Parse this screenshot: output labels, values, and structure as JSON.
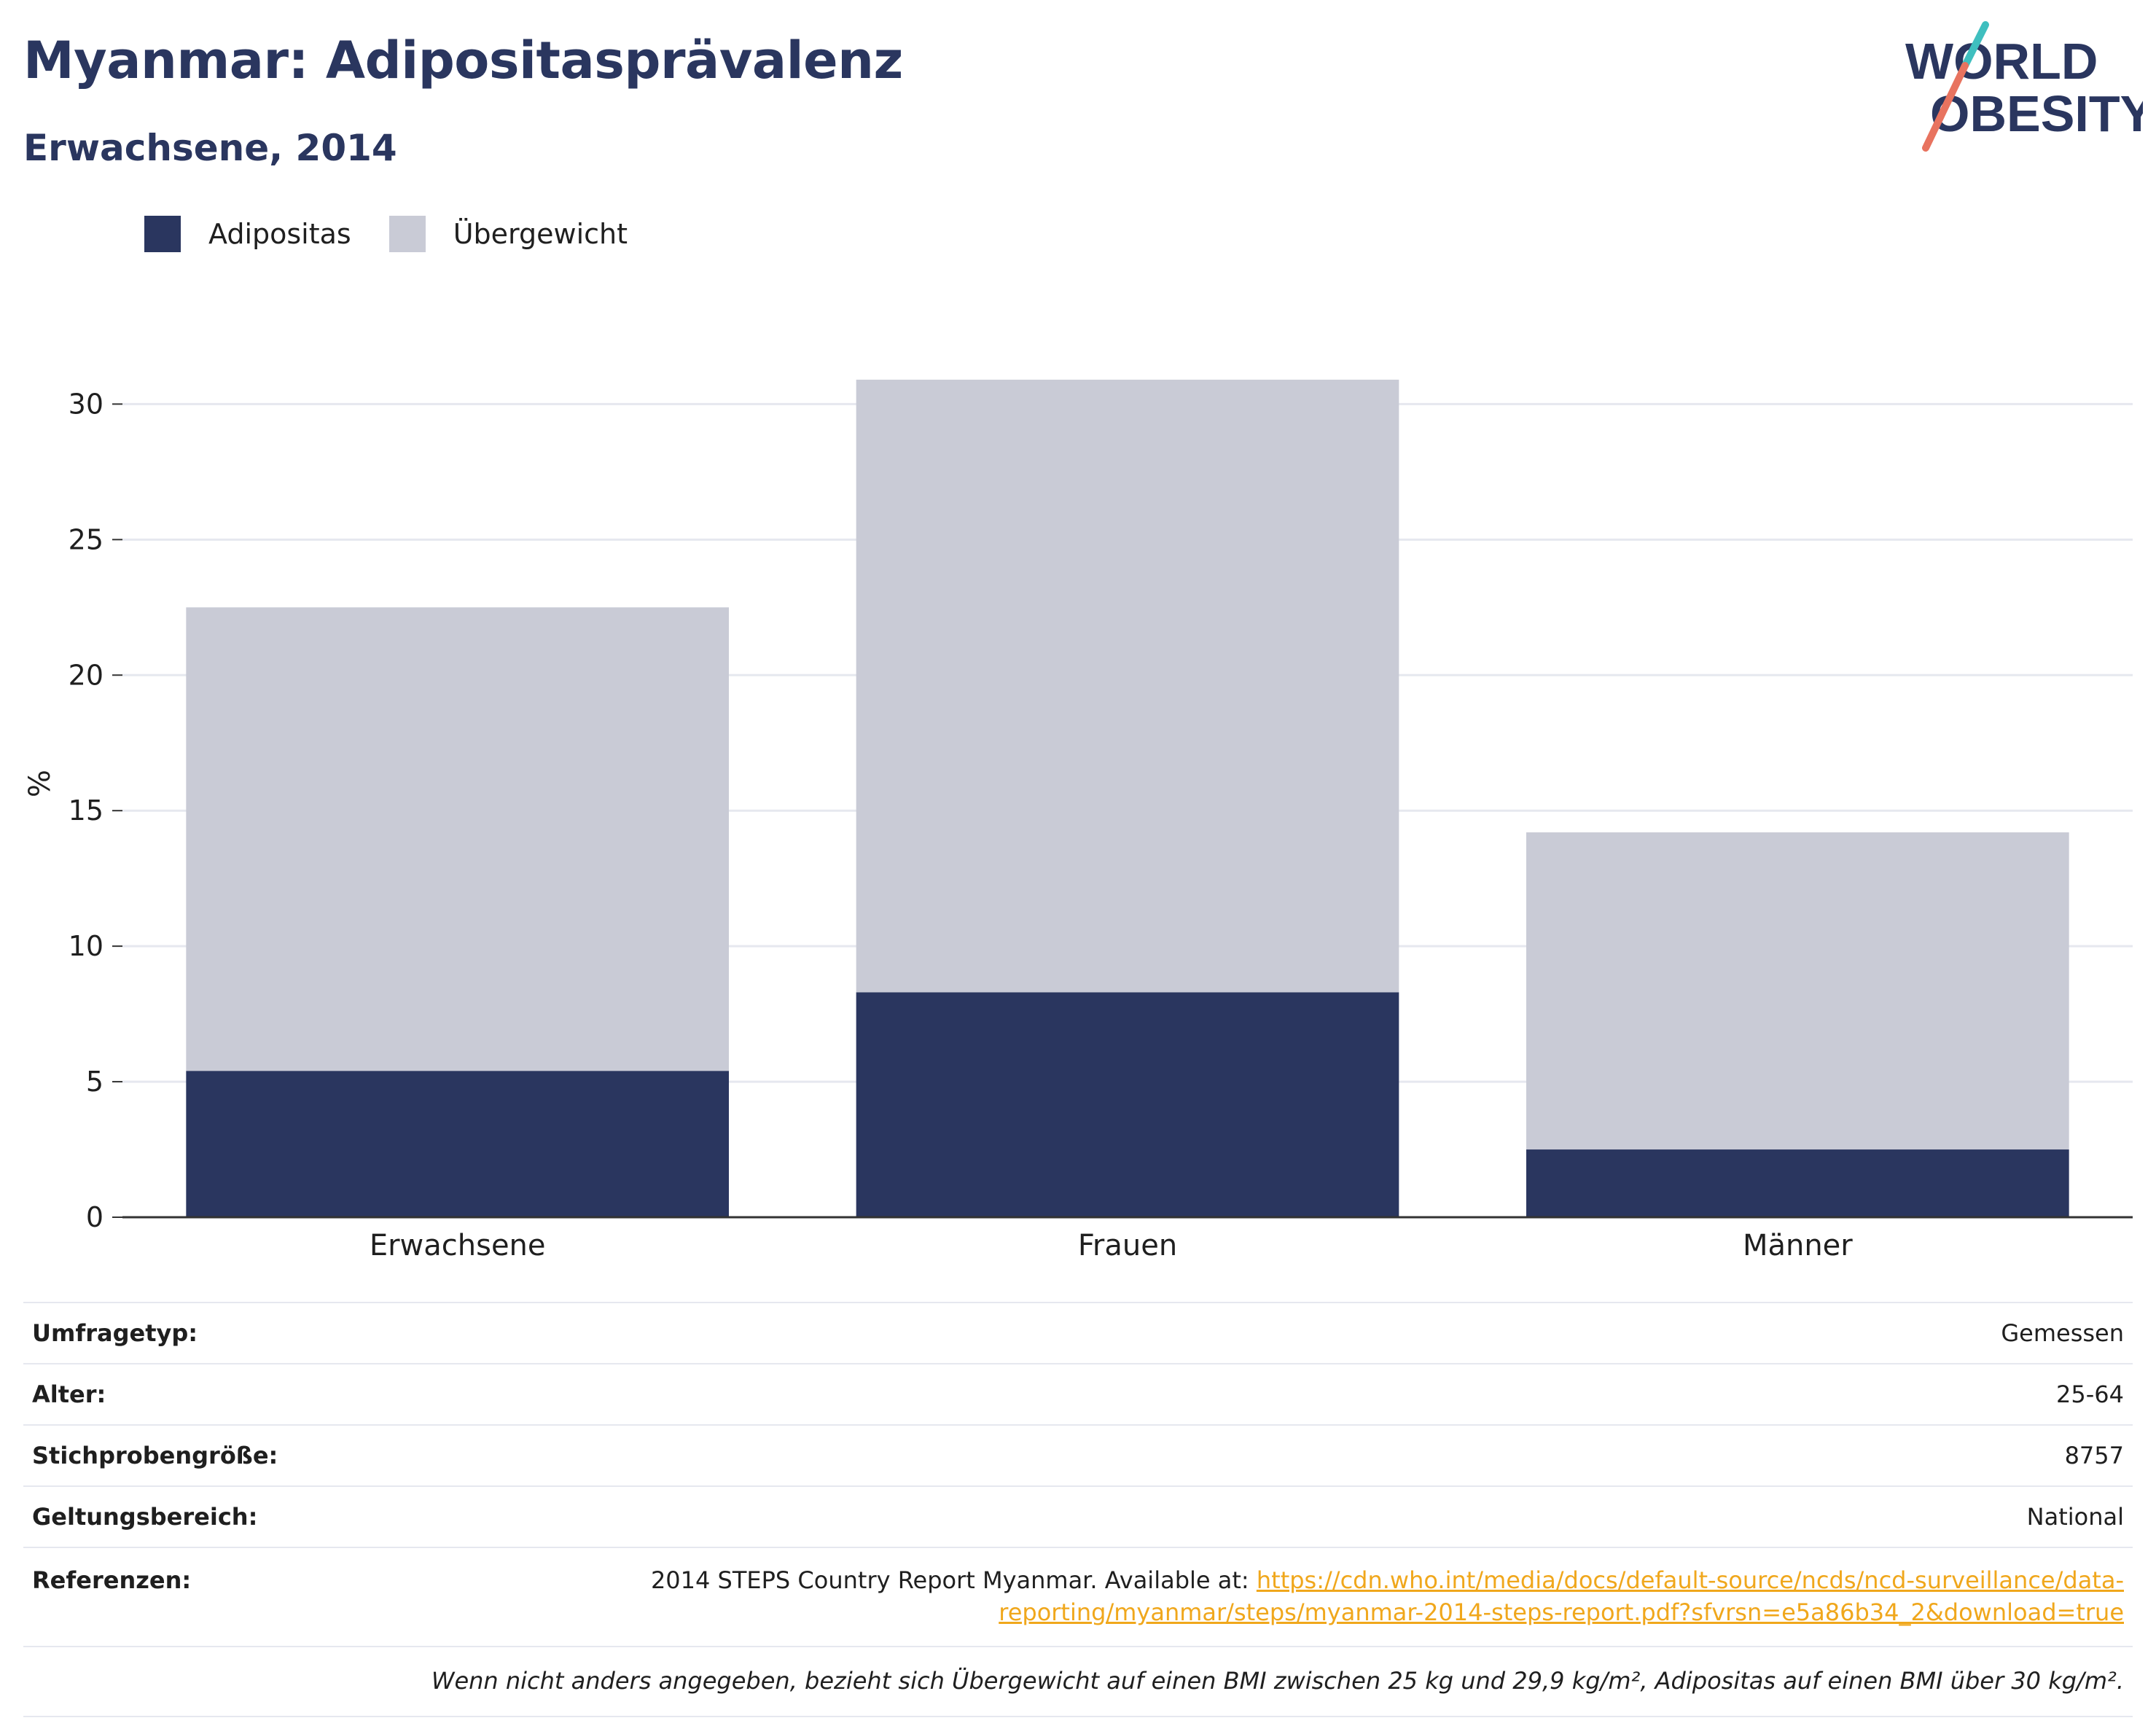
{
  "header": {
    "title": "Myanmar: Adipositasprävalenz",
    "subtitle": "Erwachsene, 2014",
    "logo_line1": "WORLD",
    "logo_line2": "OBESITY"
  },
  "legend": {
    "items": [
      {
        "label": "Adipositas",
        "color": "#2a365f"
      },
      {
        "label": "Übergewicht",
        "color": "#c9cbd6"
      }
    ]
  },
  "chart_data": {
    "type": "bar",
    "stacked": true,
    "categories": [
      "Erwachsene",
      "Frauen",
      "Männer"
    ],
    "series": [
      {
        "name": "Adipositas",
        "values": [
          5.4,
          8.3,
          2.5
        ],
        "color": "#2a365f"
      },
      {
        "name": "Übergewicht",
        "values": [
          17.1,
          22.6,
          11.7
        ],
        "color": "#c9cbd6"
      }
    ],
    "ylabel": "%",
    "ylim": [
      0,
      32
    ],
    "yticks": [
      0,
      5,
      10,
      15,
      20,
      25,
      30
    ],
    "grid": true,
    "legend_position": "top-left"
  },
  "info": {
    "rows": [
      {
        "key": "Umfragetyp:",
        "value": "Gemessen"
      },
      {
        "key": "Alter:",
        "value": "25-64"
      },
      {
        "key": "Stichprobengröße:",
        "value": "8757"
      },
      {
        "key": "Geltungsbereich:",
        "value": "National"
      }
    ],
    "reference_key": "Referenzen:",
    "reference_text": "2014 STEPS Country Report Myanmar. Available at: ",
    "reference_link_line1": "https://cdn.who.int/media/docs/default-source/ncds/ncd-surveillance/data-",
    "reference_link_line2": "reporting/myanmar/steps/myanmar-2014-steps-report.pdf?sfvrsn=e5a86b34_2&download=true",
    "note": "Wenn nicht anders angegeben, bezieht sich Übergewicht auf einen BMI zwischen 25 kg und 29,9 kg/m², Adipositas auf einen BMI über 30 kg/m²."
  }
}
